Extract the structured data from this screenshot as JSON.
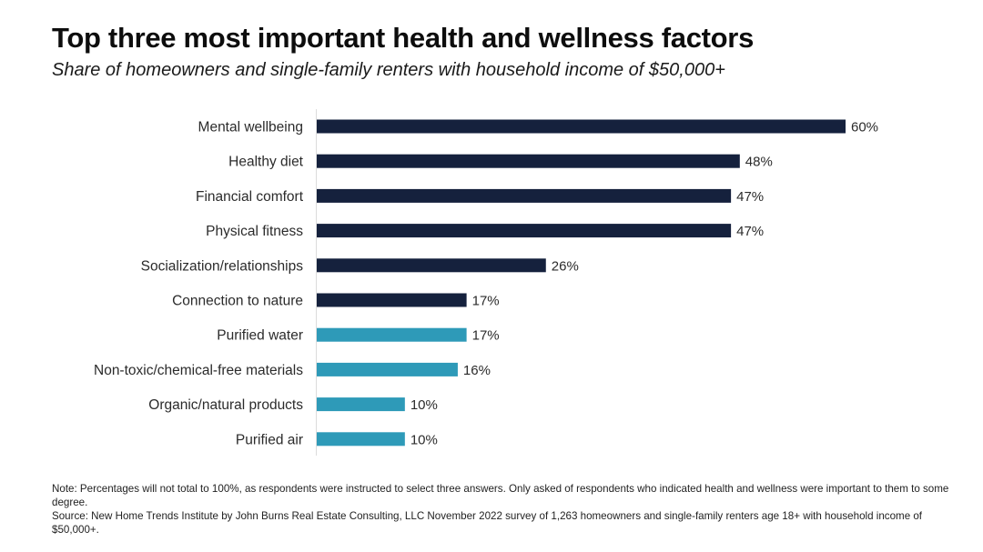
{
  "colors": {
    "primary_bar": "#15213d",
    "secondary_bar": "#2e9ab8",
    "axis_line": "#dcdcdc",
    "label_text": "#2b2b2b"
  },
  "chart_data": {
    "type": "bar",
    "orientation": "horizontal",
    "title": "Top three most important health and wellness factors",
    "subtitle": "Share of homeowners and single-family renters with household income of $50,000+",
    "xlabel": "",
    "ylabel": "",
    "xlim": [
      0,
      60
    ],
    "grid": false,
    "legend": null,
    "value_suffix": "%",
    "categories": [
      "Mental wellbeing",
      "Healthy diet",
      "Financial comfort",
      "Physical fitness",
      "Socialization/relationships",
      "Connection to nature",
      "Purified water",
      "Non-toxic/chemical-free materials",
      "Organic/natural products",
      "Purified air"
    ],
    "values": [
      60,
      48,
      47,
      47,
      26,
      17,
      17,
      16,
      10,
      10
    ],
    "value_labels": [
      "60%",
      "48%",
      "47%",
      "47%",
      "26%",
      "17%",
      "17%",
      "16%",
      "10%",
      "10%"
    ],
    "bar_color_groups": [
      "primary",
      "primary",
      "primary",
      "primary",
      "primary",
      "primary",
      "secondary",
      "secondary",
      "secondary",
      "secondary"
    ]
  },
  "notes": {
    "note": "Note: Percentages will not total to 100%, as respondents were instructed to select three answers. Only asked of respondents who indicated health and wellness were important to them to some degree.",
    "source": "Source: New Home Trends Institute by John Burns Real Estate Consulting, LLC November 2022 survey of 1,263 homeowners and single-family renters age 18+ with household income of $50,000+."
  }
}
